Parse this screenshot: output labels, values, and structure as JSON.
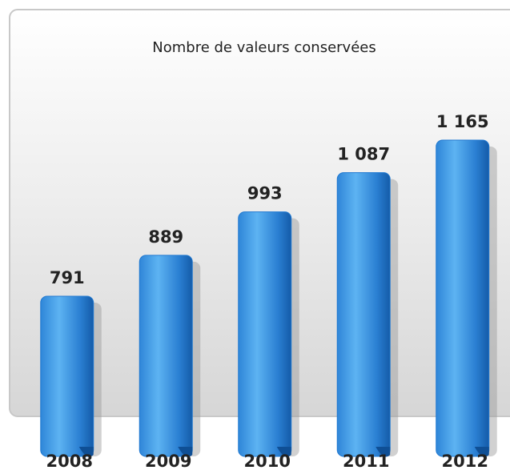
{
  "chart_data": {
    "type": "bar",
    "title": "Nombre de valeurs conservées",
    "categories": [
      "2008",
      "2009",
      "2010",
      "2011",
      "2012"
    ],
    "values": [
      791,
      889,
      993,
      1087,
      1165
    ],
    "value_labels": [
      "791",
      "889",
      "993",
      "1 087",
      "1 165"
    ],
    "color": "#1f78d1"
  }
}
